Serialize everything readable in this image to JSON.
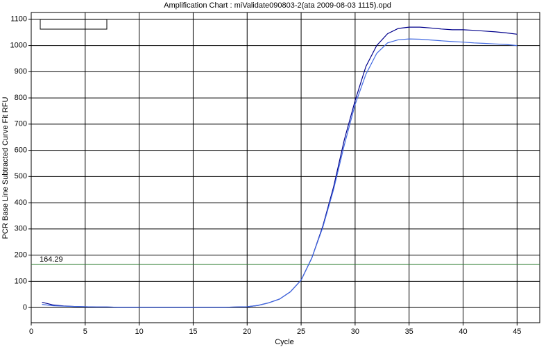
{
  "chart_data": {
    "type": "line",
    "title": "Amplification Chart : miValidate090803-2(ata 2009-08-03 1115).opd",
    "x_label": "Cycle",
    "y_label": "PCR Base Line Subtracted Curve Fit RFU",
    "x": [
      1,
      2,
      3,
      4,
      5,
      6,
      7,
      8,
      9,
      10,
      11,
      12,
      13,
      14,
      15,
      16,
      17,
      18,
      19,
      20,
      21,
      22,
      23,
      24,
      25,
      26,
      27,
      28,
      29,
      30,
      31,
      32,
      33,
      34,
      35,
      36,
      37,
      38,
      39,
      40,
      41,
      42,
      43,
      44,
      45
    ],
    "series": [
      {
        "color": "#00008b",
        "values": [
          20,
          10,
          6,
          4,
          3,
          2,
          2,
          1,
          1,
          1,
          1,
          1,
          1,
          1,
          1,
          1,
          1,
          1,
          2,
          3,
          8,
          18,
          32,
          60,
          105,
          190,
          310,
          460,
          640,
          790,
          920,
          1000,
          1045,
          1065,
          1070,
          1070,
          1067,
          1063,
          1060,
          1060,
          1058,
          1055,
          1052,
          1048,
          1043
        ]
      },
      {
        "color": "#4169e1",
        "values": [
          12,
          7,
          5,
          4,
          3,
          2,
          2,
          1,
          1,
          1,
          1,
          1,
          1,
          1,
          1,
          1,
          1,
          1,
          2,
          3,
          8,
          18,
          32,
          60,
          105,
          190,
          305,
          450,
          620,
          775,
          890,
          970,
          1010,
          1022,
          1025,
          1024,
          1021,
          1018,
          1015,
          1013,
          1010,
          1008,
          1006,
          1004,
          1000
        ]
      }
    ],
    "threshold": 164.29,
    "threshold_color": "#2e7d32",
    "xlim": [
      0,
      47.1
    ],
    "ylim": [
      -58,
      1126
    ],
    "xticks": [
      0,
      5,
      10,
      15,
      20,
      25,
      30,
      35,
      40,
      45
    ],
    "yticks": [
      0,
      100,
      200,
      300,
      400,
      500,
      600,
      700,
      800,
      900,
      1000,
      1100
    ],
    "grid": true
  }
}
